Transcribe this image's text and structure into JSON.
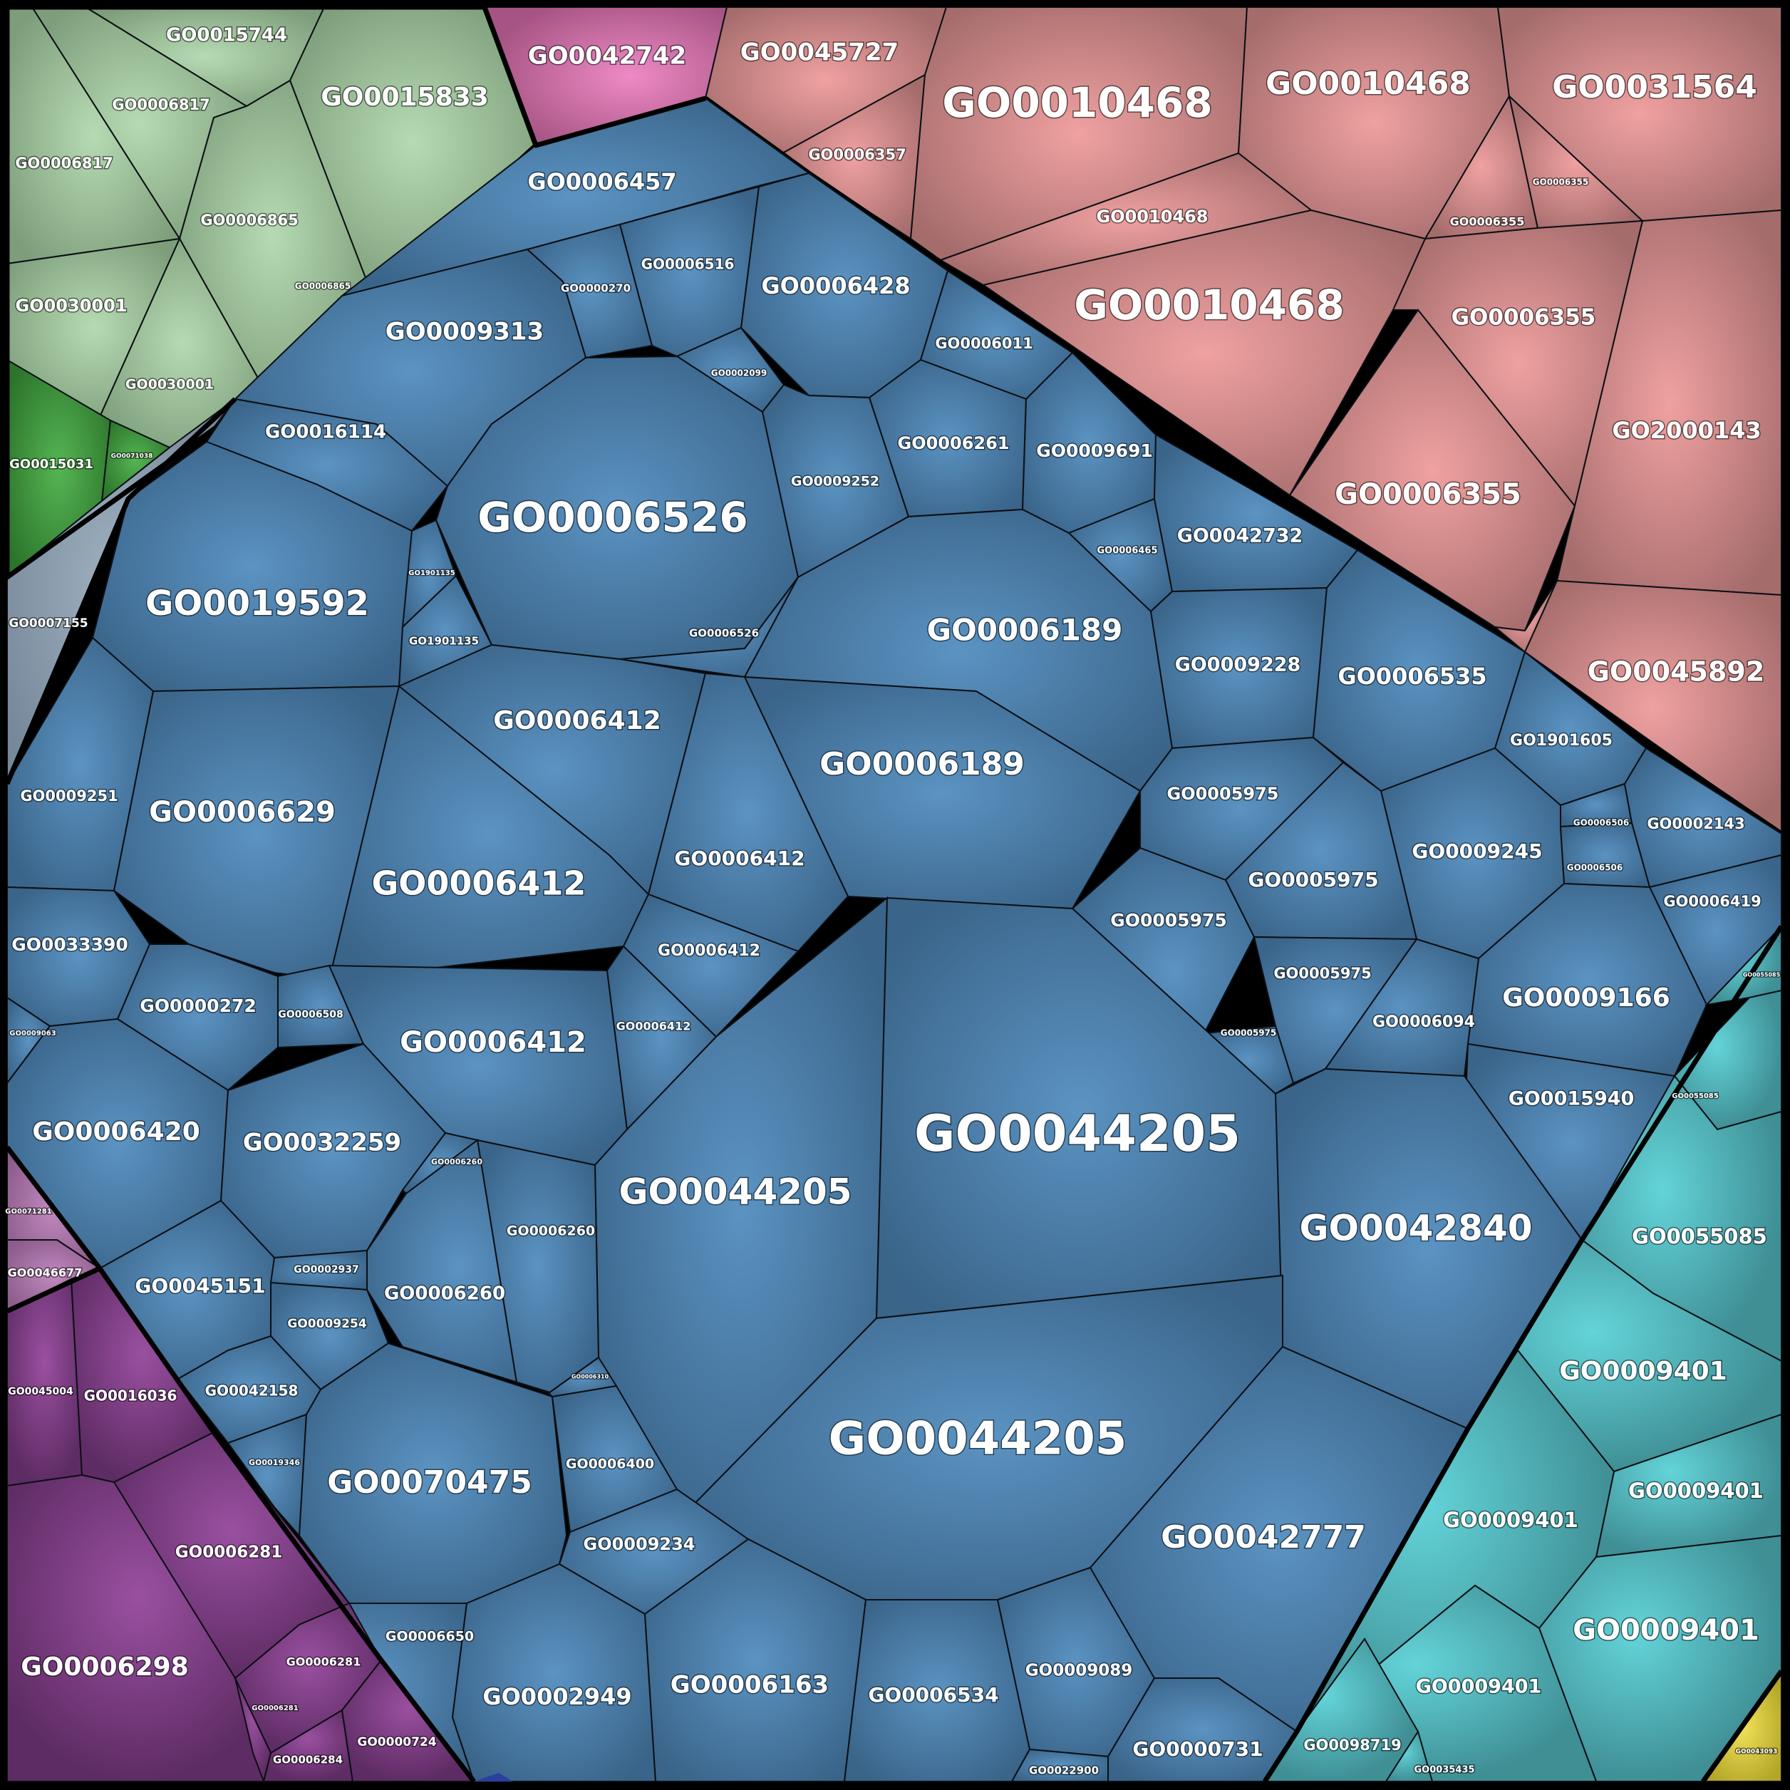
{
  "colors": {
    "green": "#9fbf98",
    "darkgreen": "#3d8f3c",
    "pink": "#c06b9e",
    "salmon": "#c98585",
    "blue": "#4a7ba6",
    "teal": "#4fa9ad",
    "purple": "#7a3d7c",
    "lightpurple": "#a97aa6",
    "gray": "#8a9aa8",
    "yellow": "#d8c73b",
    "border": "#000000"
  },
  "labels": {
    "l1": "GO0015744",
    "l2": "GO0006817",
    "l3": "GO0015833",
    "l4": "GO0006817",
    "l5": "GO0006865",
    "l6": "GO0006865",
    "l7": "GO0030001",
    "l8": "GO0030001",
    "l9": "GO0015031",
    "l10": "GO0071038",
    "l11": "GO0007155",
    "l12": "GO0042742",
    "l13": "GO0006457",
    "l14": "GO0045727",
    "l15": "GO0006357",
    "l16": "GO0010468",
    "l17": "GO0010468",
    "l18": "GO0031564",
    "l19": "GO0010468",
    "l20": "GO0006355",
    "l21": "GO0006355",
    "l22": "GO0010468",
    "l23": "GO0006355",
    "l24": "GO2000143",
    "l25": "GO0006355",
    "l26": "GO0045892",
    "l27": "GO0000270",
    "l28": "GO0006516",
    "l29": "GO0006428",
    "l30": "GO0009313",
    "l31": "GO0002099",
    "l32": "GO0006011",
    "l33": "GO0016114",
    "l34": "GO0006526",
    "l35": "GO0009252",
    "l36": "GO0006261",
    "l37": "GO0009691",
    "l38": "GO0019592",
    "l39": "GO1901135",
    "l40": "GO1901135",
    "l41": "GO0006526",
    "l42": "GO0006465",
    "l43": "GO0042732",
    "l44": "GO0006189",
    "l45": "GO0009228",
    "l46": "GO0006535",
    "l47": "GO0006412",
    "l48": "GO0006189",
    "l49": "GO1901605",
    "l50": "GO0009251",
    "l51": "GO0006629",
    "l52": "GO0005975",
    "l53": "GO0006506",
    "l54": "GO0002143",
    "l55": "GO0006412",
    "l56": "GO0006412",
    "l57": "GO0009245",
    "l58": "GO0005975",
    "l59": "GO0006506",
    "l60": "GO0006419",
    "l61": "GO0006412",
    "l62": "GO0005975",
    "l63": "GO0033390",
    "l64": "GO0005975",
    "l65": "GO0009166",
    "l66": "GO0000272",
    "l67": "GO0006508",
    "l68": "GO0006412",
    "l69": "GO0006094",
    "l70": "GO0005975",
    "l71": "GO0006412",
    "l72": "GO0009063",
    "l73": "GO0015940",
    "l74": "GO0006420",
    "l75": "GO0032259",
    "l76": "GO0044205",
    "l77": "GO0006260",
    "l78": "GO0044205",
    "l79": "GO0042840",
    "l80": "GO0006260",
    "l81": "GO0045151",
    "l82": "GO0002937",
    "l83": "GO0006260",
    "l84": "GO0009254",
    "l85": "GO0042158",
    "l86": "GO0006310",
    "l87": "GO0019346",
    "l88": "GO0070475",
    "l89": "GO0006400",
    "l90": "GO0044205",
    "l91": "GO0009234",
    "l92": "GO0042777",
    "l93": "GO0006650",
    "l94": "GO0002949",
    "l95": "GO0006163",
    "l96": "GO0006534",
    "l97": "GO0009089",
    "l98": "GO0000731",
    "l99": "GO0022900",
    "l100": "GO0071281",
    "l101": "GO0046677",
    "l102": "GO0045004",
    "l103": "GO0016036",
    "l104": "GO0006281",
    "l105": "GO0006298",
    "l106": "GO0006281",
    "l107": "GO0006281",
    "l108": "GO0006284",
    "l109": "GO0000724",
    "l110": "GO0055085",
    "l111": "GO0055085",
    "l112": "GO0055085",
    "l113": "GO0009401",
    "l114": "GO0009401",
    "l115": "GO0009401",
    "l116": "GO0009401",
    "l117": "GO0009401",
    "l118": "GO0098719",
    "l119": "GO0035435",
    "l120": "GO0043093"
  }
}
